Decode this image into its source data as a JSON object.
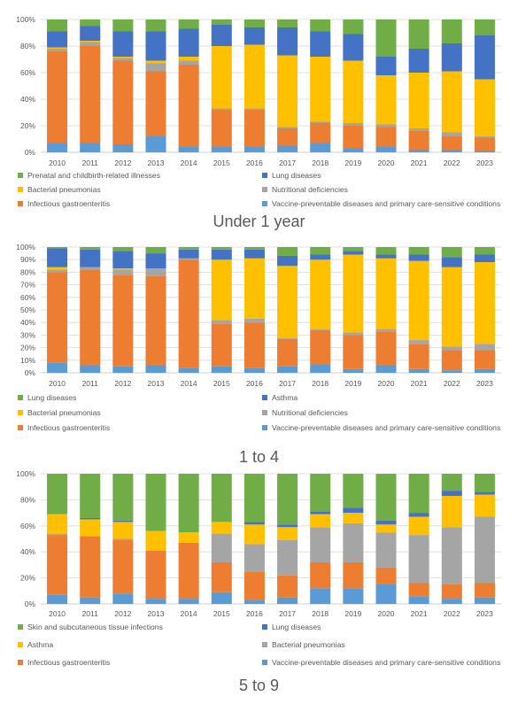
{
  "colors": {
    "vaccine": "#5b9bd5",
    "infectious": "#ed7d31",
    "nutritional": "#a5a5a5",
    "bacterial": "#ffc000",
    "lung": "#4472c4",
    "prenatal": "#70ad47",
    "asthma": "#4472c4",
    "skin": "#70ad47"
  },
  "chart_data": [
    {
      "type": "bar",
      "stacked": true,
      "title": "Under 1 year",
      "categories": [
        "2010",
        "2011",
        "2012",
        "2013",
        "2014",
        "2015",
        "2016",
        "2017",
        "2018",
        "2019",
        "2020",
        "2021",
        "2022",
        "2023"
      ],
      "ytick_labels": [
        "0%",
        "20%",
        "40%",
        "60%",
        "80%",
        "100%"
      ],
      "ylim": [
        0,
        100
      ],
      "grid": true,
      "legend_position": "bottom",
      "legend": [
        {
          "label": "Prenatal and childbirth-related illnesses",
          "color_key": "prenatal"
        },
        {
          "label": "Lung diseases",
          "color_key": "lung"
        },
        {
          "label": "Bacterial pneumonias",
          "color_key": "bacterial"
        },
        {
          "label": "Nutritional deficiencies",
          "color_key": "nutritional"
        },
        {
          "label": "Infectious gastroenteritis",
          "color_key": "infectious"
        },
        {
          "label": "Vaccine-preventable diseases and primary care-sensitive conditions",
          "color_key": "vaccine"
        }
      ],
      "series": [
        {
          "name": "Vaccine-preventable diseases and primary care-sensitive conditions",
          "color_key": "vaccine",
          "values": [
            7,
            7,
            6,
            12,
            4,
            4,
            4,
            5,
            7,
            3,
            4,
            2,
            2,
            1
          ]
        },
        {
          "name": "Infectious gastroenteritis",
          "color_key": "infectious",
          "values": [
            69,
            73,
            63,
            49,
            62,
            28,
            28,
            13,
            15,
            17,
            15,
            14,
            10,
            10
          ]
        },
        {
          "name": "Nutritional deficiencies",
          "color_key": "nutritional",
          "values": [
            2,
            3,
            2,
            6,
            3,
            1,
            1,
            1,
            1,
            2,
            2,
            2,
            3,
            1
          ]
        },
        {
          "name": "Bacterial pneumonias",
          "color_key": "bacterial",
          "values": [
            1,
            1,
            1,
            2,
            3,
            47,
            48,
            54,
            49,
            47,
            37,
            42,
            46,
            43
          ]
        },
        {
          "name": "Lung diseases",
          "color_key": "lung",
          "values": [
            12,
            11,
            19,
            22,
            21,
            16,
            13,
            21,
            19,
            20,
            14,
            18,
            21,
            33
          ]
        },
        {
          "name": "Prenatal and childbirth-related illnesses",
          "color_key": "prenatal",
          "values": [
            9,
            5,
            9,
            9,
            7,
            4,
            6,
            6,
            9,
            11,
            28,
            22,
            18,
            12
          ]
        }
      ]
    },
    {
      "type": "bar",
      "stacked": true,
      "title": "1 to 4",
      "categories": [
        "2010",
        "2011",
        "2012",
        "2013",
        "2014",
        "2015",
        "2016",
        "2017",
        "2018",
        "2019",
        "2020",
        "2021",
        "2022",
        "2023"
      ],
      "ytick_labels": [
        "0%",
        "10%",
        "20%",
        "30%",
        "40%",
        "50%",
        "60%",
        "70%",
        "80%",
        "90%",
        "100%"
      ],
      "ylim": [
        0,
        100
      ],
      "grid": true,
      "legend_position": "bottom",
      "legend": [
        {
          "label": "Lung diseases",
          "color_key": "prenatal"
        },
        {
          "label": "Asthma",
          "color_key": "asthma"
        },
        {
          "label": "Bacterial pneumonias",
          "color_key": "bacterial"
        },
        {
          "label": "Nutritional deficiencies",
          "color_key": "nutritional"
        },
        {
          "label": "Infectious gastroenteritis",
          "color_key": "infectious"
        },
        {
          "label": "Vaccine-preventable diseases and primary care-sensitive conditions",
          "color_key": "vaccine"
        }
      ],
      "series": [
        {
          "name": "Vaccine-preventable diseases and primary care-sensitive conditions",
          "color_key": "vaccine",
          "values": [
            8,
            6,
            5,
            6,
            4,
            5,
            4,
            5,
            7,
            3,
            6,
            3,
            2,
            3
          ]
        },
        {
          "name": "Infectious gastroenteritis",
          "color_key": "infectious",
          "values": [
            72,
            76,
            73,
            71,
            86,
            34,
            36,
            22,
            27,
            27,
            27,
            20,
            16,
            15
          ]
        },
        {
          "name": "Nutritional deficiencies",
          "color_key": "nutritional",
          "values": [
            2,
            2,
            4,
            6,
            1,
            3,
            3,
            1,
            1,
            2,
            2,
            3,
            3,
            5
          ]
        },
        {
          "name": "Bacterial pneumonias",
          "color_key": "bacterial",
          "values": [
            2,
            0,
            1,
            0,
            0,
            48,
            48,
            57,
            55,
            62,
            56,
            63,
            63,
            65
          ]
        },
        {
          "name": "Asthma",
          "color_key": "asthma",
          "values": [
            15,
            14,
            14,
            12,
            7,
            8,
            7,
            8,
            4,
            3,
            3,
            5,
            8,
            6
          ]
        },
        {
          "name": "Lung diseases",
          "color_key": "prenatal",
          "values": [
            1,
            2,
            3,
            5,
            2,
            2,
            2,
            7,
            6,
            3,
            6,
            6,
            8,
            6
          ]
        }
      ]
    },
    {
      "type": "bar",
      "stacked": true,
      "title": "5 to 9",
      "categories": [
        "2010",
        "2011",
        "2012",
        "2013",
        "2014",
        "2015",
        "2016",
        "2017",
        "2018",
        "2019",
        "2020",
        "2021",
        "2022",
        "2023"
      ],
      "ytick_labels": [
        "0%",
        "20%",
        "40%",
        "60%",
        "80%",
        "100%"
      ],
      "ylim": [
        0,
        100
      ],
      "grid": true,
      "legend_position": "bottom",
      "legend": [
        {
          "label": "Skin and subcutaneous tissue infections",
          "color_key": "skin"
        },
        {
          "label": "Lung diseases",
          "color_key": "lung"
        },
        {
          "label": "Asthma",
          "color_key": "bacterial"
        },
        {
          "label": "Bacterial pneumonias",
          "color_key": "nutritional"
        },
        {
          "label": "Infectious gastroenteritis",
          "color_key": "infectious"
        },
        {
          "label": "Vaccine-preventable diseases and primary care-sensitive conditions",
          "color_key": "vaccine"
        }
      ],
      "series": [
        {
          "name": "Vaccine-preventable diseases and primary care-sensitive conditions",
          "color_key": "vaccine",
          "values": [
            7,
            5,
            8,
            4,
            4,
            9,
            3,
            5,
            12,
            12,
            15,
            6,
            4,
            5
          ]
        },
        {
          "name": "Infectious gastroenteritis",
          "color_key": "infectious",
          "values": [
            46,
            47,
            41,
            37,
            43,
            23,
            22,
            17,
            20,
            20,
            13,
            10,
            11,
            11
          ]
        },
        {
          "name": "Bacterial pneumonias",
          "color_key": "nutritional",
          "values": [
            1,
            0,
            1,
            0,
            0,
            22,
            21,
            27,
            27,
            30,
            27,
            37,
            44,
            51
          ]
        },
        {
          "name": "Asthma",
          "color_key": "bacterial",
          "values": [
            15,
            13,
            13,
            15,
            8,
            9,
            15,
            10,
            10,
            8,
            6,
            14,
            24,
            17
          ]
        },
        {
          "name": "Lung diseases",
          "color_key": "lung",
          "values": [
            0,
            1,
            1,
            0,
            0,
            0,
            2,
            2,
            2,
            4,
            3,
            3,
            4,
            2
          ]
        },
        {
          "name": "Skin and subcutaneous tissue infections",
          "color_key": "skin",
          "values": [
            31,
            34,
            36,
            44,
            45,
            37,
            37,
            39,
            29,
            26,
            36,
            30,
            13,
            14
          ]
        }
      ]
    }
  ]
}
